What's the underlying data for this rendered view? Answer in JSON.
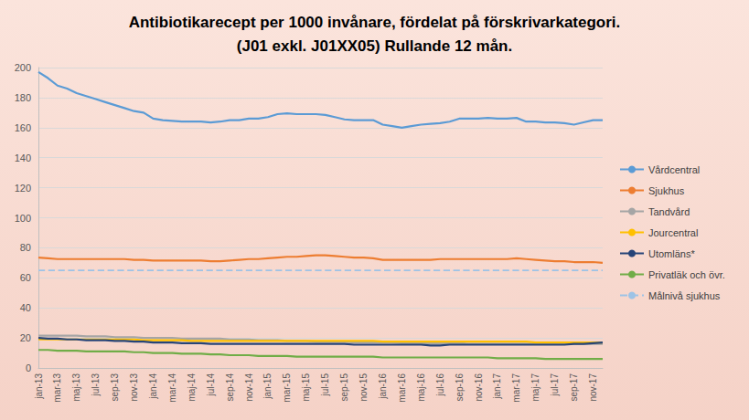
{
  "chart_data": {
    "type": "line",
    "title": "Antibiotikarecept per 1000 invånare, fördelat på förskrivarkategori.\n(J01 exkl. J01XX05) Rullande 12 mån.",
    "categories": [
      "jan-13",
      null,
      "mar-13",
      null,
      "maj-13",
      null,
      "jul-13",
      null,
      "sep-13",
      null,
      "nov-13",
      null,
      "jan-14",
      null,
      "mar-14",
      null,
      "maj-14",
      null,
      "jul-14",
      null,
      "sep-14",
      null,
      "nov-14",
      null,
      "jan-15",
      null,
      "mar-15",
      null,
      "maj-15",
      null,
      "jul-15",
      null,
      "sep-15",
      null,
      "nov-15",
      null,
      "jan-16",
      null,
      "mar-16",
      null,
      "maj-16",
      null,
      "jul-16",
      null,
      "sep-16",
      null,
      "nov-16",
      null,
      "jan-17",
      null,
      "mar-17",
      null,
      "maj-17",
      null,
      "jul-17",
      null,
      "sep-17",
      null,
      "nov-17",
      null
    ],
    "series": [
      {
        "name": "Vårdcentral",
        "color": "#5b9bd5",
        "line_style": "solid",
        "values": [
          197,
          193,
          188,
          186,
          183,
          181,
          179,
          177,
          175,
          173,
          171,
          170,
          166,
          165,
          164.5,
          164,
          164,
          164,
          163.5,
          164,
          165,
          165,
          166,
          166,
          167,
          169,
          169.5,
          169,
          169,
          169,
          168.5,
          167,
          165.5,
          165,
          165,
          165,
          162,
          161,
          160,
          161,
          162,
          162.5,
          163,
          164,
          166,
          166,
          166,
          166.5,
          166,
          166,
          166.5,
          164,
          164,
          163.5,
          163.5,
          163,
          162,
          163.5,
          165,
          165
        ]
      },
      {
        "name": "Sjukhus",
        "color": "#ed7d31",
        "line_style": "solid",
        "values": [
          73.5,
          73,
          72.5,
          72.5,
          72.5,
          72.5,
          72.5,
          72.5,
          72.5,
          72.5,
          72,
          72,
          71.5,
          71.5,
          71.5,
          71.5,
          71.5,
          71.5,
          71,
          71,
          71.5,
          72,
          72.5,
          72.5,
          73,
          73.5,
          74,
          74,
          74.5,
          75,
          75,
          74.5,
          74,
          73.5,
          73.5,
          73,
          72,
          72,
          72,
          72,
          72,
          72,
          72.5,
          72.5,
          72.5,
          72.5,
          72.5,
          72.5,
          72.5,
          72.5,
          73,
          72.5,
          72,
          71.5,
          71,
          71,
          70.5,
          70.5,
          70.5,
          70
        ]
      },
      {
        "name": "Tandvård",
        "color": "#a5a5a5",
        "line_style": "solid",
        "values": [
          21.5,
          21.5,
          21.5,
          21.5,
          21.5,
          21,
          21,
          21,
          20.5,
          20.5,
          20.5,
          20,
          20,
          20,
          20,
          19.5,
          19.5,
          19.5,
          19.5,
          19.5,
          19,
          19,
          19,
          18.5,
          18.5,
          18.5,
          18,
          18,
          18,
          17.5,
          17.5,
          17.5,
          17.5,
          17,
          17,
          17,
          17,
          17,
          16.5,
          16.5,
          16.5,
          16.5,
          16.5,
          16.5,
          16.5,
          16,
          16,
          16,
          16,
          16,
          16,
          16,
          16,
          16,
          16,
          16,
          16,
          16,
          16,
          16
        ]
      },
      {
        "name": "Jourcentral",
        "color": "#ffc000",
        "line_style": "solid",
        "values": [
          19,
          19,
          19,
          19,
          19,
          19,
          19,
          19,
          19,
          19,
          19,
          18.5,
          18.5,
          18.5,
          18.5,
          18.5,
          18,
          18,
          18,
          18,
          18,
          18,
          18,
          18,
          18,
          18,
          18,
          18,
          18,
          18,
          18,
          18,
          18,
          18,
          18,
          18,
          17.5,
          17.5,
          17.5,
          17.5,
          17.5,
          17.5,
          17.5,
          17.5,
          17.5,
          17.5,
          17.5,
          17.5,
          17.5,
          17.5,
          17.5,
          17.5,
          17,
          17,
          17,
          17,
          17,
          17,
          17,
          17
        ]
      },
      {
        "name": "Utomläns*",
        "color": "#264478",
        "line_style": "solid",
        "values": [
          20,
          19.5,
          19.5,
          19,
          19,
          18.5,
          18.5,
          18.5,
          18,
          18,
          17.5,
          17.5,
          17,
          17,
          17,
          16.5,
          16.5,
          16.5,
          16,
          16,
          16,
          16,
          16,
          16,
          16,
          16,
          16,
          16,
          16,
          16,
          16,
          16,
          16,
          15.5,
          15.5,
          15.5,
          15.5,
          15.5,
          15.5,
          15.5,
          15.5,
          15,
          15,
          15.5,
          15.5,
          15.5,
          15.5,
          15.5,
          15.5,
          15.5,
          15.5,
          15.5,
          15.5,
          15.5,
          15.5,
          15.5,
          16,
          16,
          16.5,
          17
        ]
      },
      {
        "name": "Privatläk och övr.",
        "color": "#70ad47",
        "line_style": "solid",
        "values": [
          12,
          12,
          11.5,
          11.5,
          11.5,
          11,
          11,
          11,
          11,
          11,
          10.5,
          10.5,
          10,
          10,
          10,
          9.5,
          9.5,
          9.5,
          9,
          9,
          8.5,
          8.5,
          8.5,
          8,
          8,
          8,
          8,
          7.5,
          7.5,
          7.5,
          7.5,
          7.5,
          7.5,
          7.5,
          7.5,
          7.5,
          7,
          7,
          7,
          7,
          7,
          7,
          7,
          7,
          7,
          7,
          7,
          7,
          6.5,
          6.5,
          6.5,
          6.5,
          6.5,
          6,
          6,
          6,
          6,
          6,
          6,
          6
        ]
      },
      {
        "name": "Målnivå sjukhus",
        "color": "#9dc3e6",
        "line_style": "dashed",
        "values": [
          65,
          65,
          65,
          65,
          65,
          65,
          65,
          65,
          65,
          65,
          65,
          65,
          65,
          65,
          65,
          65,
          65,
          65,
          65,
          65,
          65,
          65,
          65,
          65,
          65,
          65,
          65,
          65,
          65,
          65,
          65,
          65,
          65,
          65,
          65,
          65,
          65,
          65,
          65,
          65,
          65,
          65,
          65,
          65,
          65,
          65,
          65,
          65,
          65,
          65,
          65,
          65,
          65,
          65,
          65,
          65,
          65,
          65,
          65,
          65
        ]
      }
    ],
    "ylim": [
      0,
      200
    ],
    "yticks": [
      0,
      20,
      40,
      60,
      80,
      100,
      120,
      140,
      160,
      180,
      200
    ],
    "grid": true,
    "legend": "right"
  }
}
